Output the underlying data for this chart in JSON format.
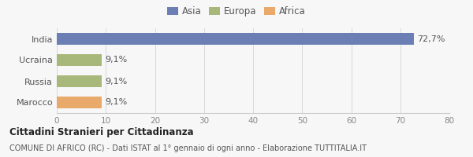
{
  "categories": [
    "India",
    "Ucraina",
    "Russia",
    "Marocco"
  ],
  "values": [
    72.7,
    9.1,
    9.1,
    9.1
  ],
  "bar_colors": [
    "#6b7fb5",
    "#a8b87a",
    "#a8b87a",
    "#e8a96a"
  ],
  "legend_items": [
    "Asia",
    "Europa",
    "Africa"
  ],
  "legend_colors": [
    "#6b7fb5",
    "#a8b87a",
    "#e8a96a"
  ],
  "value_labels": [
    "72,7%",
    "9,1%",
    "9,1%",
    "9,1%"
  ],
  "xlim": [
    0,
    80
  ],
  "xticks": [
    0,
    10,
    20,
    30,
    40,
    50,
    60,
    70,
    80
  ],
  "title_main": "Cittadini Stranieri per Cittadinanza",
  "title_sub": "COMUNE DI AFRICO (RC) - Dati ISTAT al 1° gennaio di ogni anno - Elaborazione TUTTITALIA.IT",
  "bg_color": "#f7f7f7",
  "bar_height": 0.52,
  "label_fontsize": 8,
  "tick_fontsize": 7.5,
  "legend_fontsize": 8.5
}
